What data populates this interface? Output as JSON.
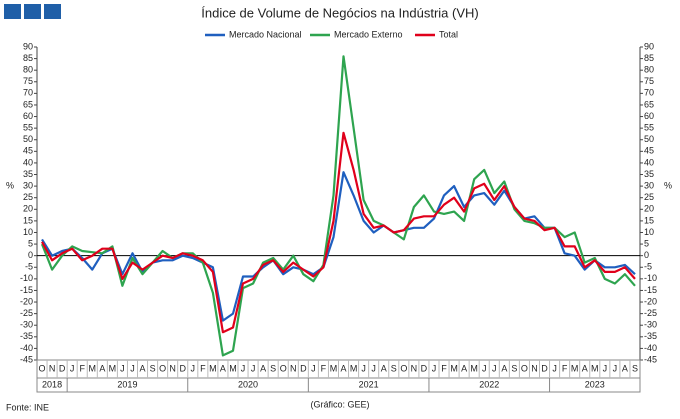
{
  "chart_data": {
    "type": "line",
    "title": "Índice de Volume de Negócios na Indústria (VH)",
    "ylabel": "%",
    "y2label": "%",
    "source": "Fonte: INE",
    "credit": "(Gráfico: GEE)",
    "categories": [
      "O",
      "N",
      "D",
      "J",
      "F",
      "M",
      "A",
      "M",
      "J",
      "J",
      "A",
      "S",
      "O",
      "N",
      "D",
      "J",
      "F",
      "M",
      "A",
      "M",
      "J",
      "J",
      "A",
      "S",
      "O",
      "N",
      "D",
      "J",
      "F",
      "M",
      "A",
      "M",
      "J",
      "J",
      "A",
      "S",
      "O",
      "N",
      "D",
      "J",
      "F",
      "M",
      "A",
      "M",
      "J",
      "J",
      "A",
      "S",
      "O",
      "N",
      "D",
      "J",
      "F",
      "M",
      "A",
      "M",
      "J",
      "J",
      "A",
      "S"
    ],
    "years": [
      "2018",
      "2019",
      "2020",
      "2021",
      "2022",
      "2023"
    ],
    "ylim": [
      -45,
      90
    ],
    "yticks": [
      -45,
      -40,
      -35,
      -30,
      -25,
      -20,
      -15,
      -10,
      -5,
      0,
      5,
      10,
      15,
      20,
      25,
      30,
      35,
      40,
      45,
      50,
      55,
      60,
      65,
      70,
      75,
      80,
      85,
      90
    ],
    "y2lim": [
      -45,
      90
    ],
    "y2ticks": [
      -45,
      -40,
      -35,
      -30,
      -25,
      -20,
      -15,
      -10,
      -5,
      0,
      5,
      10,
      15,
      20,
      25,
      30,
      35,
      40,
      45,
      50,
      55,
      60,
      65,
      70,
      75,
      80,
      85,
      90
    ],
    "series": [
      {
        "name": "Mercado Nacional",
        "color": "#1f5fbf",
        "values": [
          7,
          0,
          2,
          3,
          -1,
          -6,
          1,
          3,
          -8,
          1,
          -7,
          -3,
          -2,
          -2,
          0,
          -1,
          -3,
          -5,
          -28,
          -25,
          -9,
          -9,
          -5,
          -2,
          -8,
          -5,
          -6,
          -8,
          -5,
          8,
          36,
          26,
          15,
          10,
          13,
          10,
          11,
          12,
          12,
          16,
          26,
          30,
          21,
          26,
          27,
          22,
          28,
          21,
          16,
          17,
          12,
          12,
          1,
          0,
          -6,
          -2,
          -5,
          -5,
          -4,
          -8
        ]
      },
      {
        "name": "Mercado Externo",
        "color": "#2ea44f",
        "values": [
          5,
          -6,
          0,
          4,
          2,
          1.5,
          1,
          4,
          -13,
          -1,
          -8,
          -3,
          2,
          -1,
          1,
          1,
          -3,
          -16,
          -43,
          -41,
          -14,
          -12,
          -3,
          -1,
          -6,
          0,
          -8,
          -11,
          -4,
          26,
          86,
          55,
          24,
          15,
          13,
          10,
          7,
          21,
          26,
          19,
          18,
          19,
          15,
          33,
          37,
          27,
          32,
          20,
          15,
          14,
          12,
          12,
          8,
          10,
          -3,
          -1,
          -10,
          -12,
          -8,
          -13
        ]
      },
      {
        "name": "Total",
        "color": "#e0001b",
        "values": [
          6,
          -2,
          1,
          3,
          -2,
          0,
          3,
          3,
          -10,
          -3,
          -6,
          -3,
          0,
          -1,
          1,
          0,
          -2,
          -7,
          -33,
          -31,
          -12,
          -10,
          -4,
          -2,
          -7,
          -3,
          -6,
          -9,
          -5,
          15,
          53,
          37,
          18,
          12,
          13,
          10,
          11,
          16,
          17,
          17,
          22,
          25,
          19,
          29,
          31,
          24,
          30,
          21,
          16,
          15,
          11,
          12,
          4,
          4,
          -5,
          -2,
          -7,
          -7,
          -5,
          -10
        ]
      }
    ]
  }
}
